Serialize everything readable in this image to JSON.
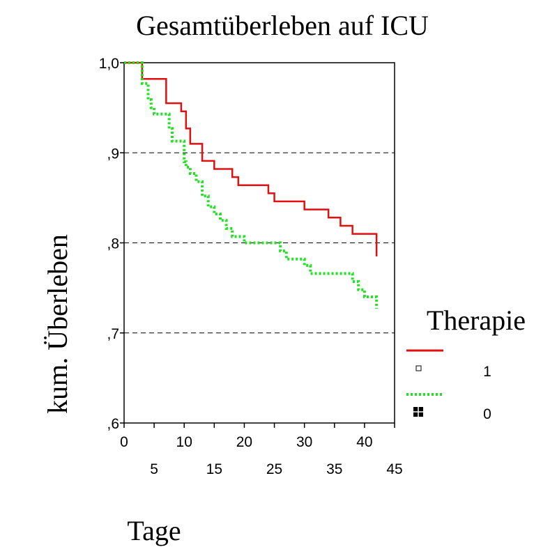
{
  "chart_data": {
    "type": "line",
    "title": "Gesamtüberleben auf ICU",
    "xlabel": "Tage",
    "ylabel": "kum. Überleben",
    "xlim": [
      0,
      45
    ],
    "ylim": [
      0.6,
      1.0
    ],
    "x_ticks_upper": [
      {
        "value": 0,
        "label": "0"
      },
      {
        "value": 10,
        "label": "10"
      },
      {
        "value": 20,
        "label": "20"
      },
      {
        "value": 30,
        "label": "30"
      },
      {
        "value": 40,
        "label": "40"
      }
    ],
    "x_ticks_lower": [
      {
        "value": 5,
        "label": "5"
      },
      {
        "value": 15,
        "label": "15"
      },
      {
        "value": 25,
        "label": "25"
      },
      {
        "value": 35,
        "label": "35"
      },
      {
        "value": 45,
        "label": "45"
      }
    ],
    "y_ticks": [
      {
        "value": 0.6,
        "label": ",6"
      },
      {
        "value": 0.7,
        "label": ",7"
      },
      {
        "value": 0.8,
        "label": ",8"
      },
      {
        "value": 0.9,
        "label": ",9"
      },
      {
        "value": 1.0,
        "label": "1,0"
      }
    ],
    "grid": "horizontal dashed",
    "legend_title": "Therapie",
    "legend_position": "right",
    "series": [
      {
        "name": "1",
        "color": "#e01010",
        "style": "solid",
        "steps": [
          [
            0,
            1.0
          ],
          [
            3,
            0.982
          ],
          [
            7,
            0.955
          ],
          [
            9.5,
            0.946
          ],
          [
            10.3,
            0.927
          ],
          [
            11,
            0.91
          ],
          [
            13,
            0.891
          ],
          [
            15,
            0.882
          ],
          [
            18,
            0.873
          ],
          [
            19,
            0.864
          ],
          [
            24,
            0.855
          ],
          [
            25,
            0.846
          ],
          [
            30,
            0.837
          ],
          [
            34,
            0.828
          ],
          [
            36,
            0.819
          ],
          [
            38,
            0.81
          ],
          [
            42,
            0.785
          ]
        ]
      },
      {
        "name": "0",
        "color": "#22e022",
        "style": "dotted",
        "steps": [
          [
            0,
            1.0
          ],
          [
            3,
            0.977
          ],
          [
            4,
            0.959
          ],
          [
            4.5,
            0.95
          ],
          [
            5,
            0.943
          ],
          [
            7.5,
            0.927
          ],
          [
            8,
            0.913
          ],
          [
            10,
            0.89
          ],
          [
            10.3,
            0.884
          ],
          [
            11,
            0.877
          ],
          [
            12,
            0.868
          ],
          [
            13,
            0.852
          ],
          [
            14,
            0.84
          ],
          [
            15,
            0.832
          ],
          [
            16,
            0.825
          ],
          [
            17,
            0.816
          ],
          [
            18,
            0.807
          ],
          [
            20,
            0.8
          ],
          [
            26,
            0.791
          ],
          [
            27,
            0.782
          ],
          [
            30,
            0.775
          ],
          [
            31,
            0.766
          ],
          [
            38,
            0.757
          ],
          [
            39,
            0.748
          ],
          [
            40,
            0.74
          ],
          [
            42,
            0.727
          ]
        ]
      }
    ]
  }
}
